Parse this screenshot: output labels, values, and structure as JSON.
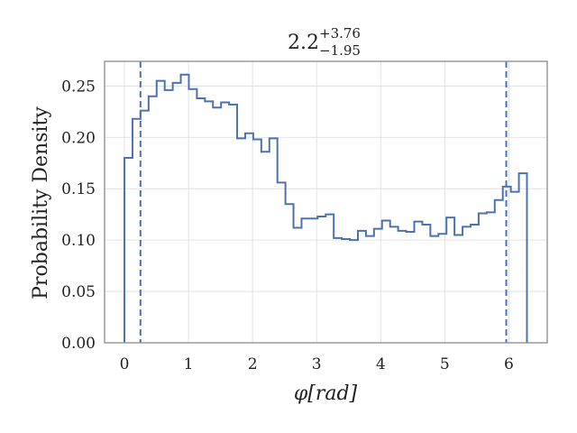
{
  "chart_data": {
    "type": "histogram",
    "title": {
      "base": "2.2",
      "upper": "+3.76",
      "lower": "−1.95"
    },
    "xlabel": "φ[rad]",
    "ylabel": "Probability Density",
    "xlim": [
      -0.31,
      6.6
    ],
    "ylim": [
      0.0,
      0.274
    ],
    "xticks": [
      0,
      1,
      2,
      3,
      4,
      5,
      6
    ],
    "xtick_labels": [
      "0",
      "1",
      "2",
      "3",
      "4",
      "5",
      "6"
    ],
    "yticks": [
      0.0,
      0.05,
      0.1,
      0.15,
      0.2,
      0.25
    ],
    "ytick_labels": [
      "0.00",
      "0.05",
      "0.10",
      "0.15",
      "0.20",
      "0.25"
    ],
    "grid": true,
    "bin_edges": [
      0.0,
      0.1257,
      0.2513,
      0.377,
      0.5027,
      0.6283,
      0.754,
      0.8796,
      1.0053,
      1.131,
      1.2566,
      1.3823,
      1.508,
      1.6336,
      1.7593,
      1.885,
      2.0106,
      2.1363,
      2.2619,
      2.3876,
      2.5133,
      2.6389,
      2.7646,
      2.8903,
      3.0159,
      3.1416,
      3.2673,
      3.3929,
      3.5186,
      3.6442,
      3.7699,
      3.8956,
      4.0212,
      4.1469,
      4.2726,
      4.3982,
      4.5239,
      4.6496,
      4.7752,
      4.9009,
      5.0265,
      5.1522,
      5.2779,
      5.4035,
      5.5292,
      5.6549,
      5.7805,
      5.9062,
      6.0319,
      6.1575,
      6.2832
    ],
    "densities": [
      0.18,
      0.218,
      0.226,
      0.24,
      0.255,
      0.246,
      0.253,
      0.261,
      0.247,
      0.238,
      0.235,
      0.229,
      0.234,
      0.232,
      0.199,
      0.204,
      0.198,
      0.186,
      0.199,
      0.156,
      0.135,
      0.112,
      0.121,
      0.121,
      0.123,
      0.125,
      0.102,
      0.101,
      0.1,
      0.109,
      0.104,
      0.111,
      0.119,
      0.113,
      0.109,
      0.108,
      0.118,
      0.115,
      0.104,
      0.106,
      0.122,
      0.105,
      0.113,
      0.115,
      0.126,
      0.127,
      0.139,
      0.152,
      0.147,
      0.165
    ],
    "vlines": [
      0.25,
      5.96
    ],
    "color": "#4C72B0"
  }
}
